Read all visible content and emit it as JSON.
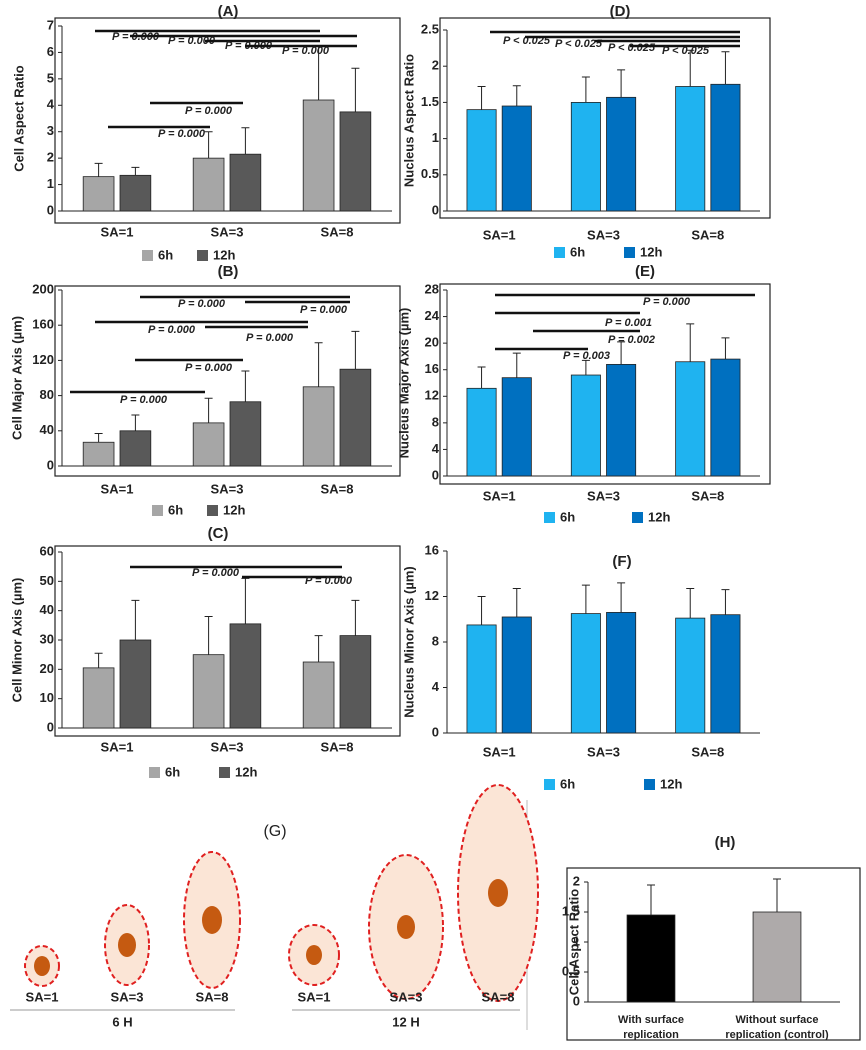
{
  "chart_data": [
    {
      "type": "bar",
      "title": "(A)",
      "y_label": "Cell Aspect Ratio",
      "categories": [
        "SA=1",
        "SA=3",
        "SA=8"
      ],
      "series": [
        {
          "name": "6h",
          "color": "#a6a6a6",
          "values": [
            1.3,
            2.0,
            4.2
          ],
          "errors": [
            0.5,
            1.0,
            2.05
          ]
        },
        {
          "name": "12h",
          "color": "#595959",
          "values": [
            1.35,
            2.15,
            3.75
          ],
          "errors": [
            0.3,
            1.0,
            1.65
          ]
        }
      ],
      "ylim": [
        0,
        7
      ],
      "yticks": [
        0,
        1,
        2,
        3,
        4,
        5,
        6,
        7
      ],
      "annotations": [
        "P = 0.000",
        "P = 0.000",
        "P = 0.000",
        "P = 0.000",
        "P = 0.000",
        "P = 0.000"
      ]
    },
    {
      "type": "bar",
      "title": "(D)",
      "y_label": "Nucleus Aspect Ratio",
      "categories": [
        "SA=1",
        "SA=3",
        "SA=8"
      ],
      "series": [
        {
          "name": "6h",
          "color": "#1fb3f0",
          "values": [
            1.4,
            1.5,
            1.72
          ],
          "errors": [
            0.32,
            0.35,
            0.5
          ]
        },
        {
          "name": "12h",
          "color": "#0070c0",
          "values": [
            1.45,
            1.57,
            1.75
          ],
          "errors": [
            0.28,
            0.38,
            0.45
          ]
        }
      ],
      "ylim": [
        0,
        2.5
      ],
      "yticks": [
        0,
        0.5,
        1,
        1.5,
        2,
        2.5
      ],
      "annotations": [
        "P < 0.025",
        "P < 0.025",
        "P < 0.025",
        "P < 0.025"
      ]
    },
    {
      "type": "bar",
      "title": "(B)",
      "y_label": "Cell Major Axis (µm)",
      "categories": [
        "SA=1",
        "SA=3",
        "SA=8"
      ],
      "series": [
        {
          "name": "6h",
          "color": "#a6a6a6",
          "values": [
            27,
            49,
            90
          ],
          "errors": [
            10,
            28,
            50
          ]
        },
        {
          "name": "12h",
          "color": "#595959",
          "values": [
            40,
            73,
            110
          ],
          "errors": [
            18,
            35,
            43
          ]
        }
      ],
      "ylim": [
        0,
        200
      ],
      "yticks": [
        0,
        40,
        80,
        120,
        160,
        200
      ],
      "annotations": [
        "P = 0.000",
        "P = 0.000",
        "P = 0.000",
        "P = 0.000",
        "P = 0.000",
        "P = 0.000"
      ]
    },
    {
      "type": "bar",
      "title": "(E)",
      "y_label": "Nucleus Major Axis (µm)",
      "categories": [
        "SA=1",
        "SA=3",
        "SA=8"
      ],
      "series": [
        {
          "name": "6h",
          "color": "#1fb3f0",
          "values": [
            13.2,
            15.2,
            17.2
          ],
          "errors": [
            3.2,
            2.2,
            5.7
          ]
        },
        {
          "name": "12h",
          "color": "#0070c0",
          "values": [
            14.8,
            16.8,
            17.6
          ],
          "errors": [
            3.7,
            3.4,
            3.2
          ]
        }
      ],
      "ylim": [
        0,
        28
      ],
      "yticks": [
        0,
        4,
        8,
        12,
        16,
        20,
        24,
        28
      ],
      "annotations": [
        "P = 0.000",
        "P = 0.001",
        "P = 0.002",
        "P = 0.003"
      ]
    },
    {
      "type": "bar",
      "title": "(C)",
      "y_label": "Cell Minor Axis (µm)",
      "categories": [
        "SA=1",
        "SA=3",
        "SA=8"
      ],
      "series": [
        {
          "name": "6h",
          "color": "#a6a6a6",
          "values": [
            20.5,
            25,
            22.5
          ],
          "errors": [
            5,
            13,
            9
          ]
        },
        {
          "name": "12h",
          "color": "#595959",
          "values": [
            30,
            35.5,
            31.5
          ],
          "errors": [
            13.5,
            15.5,
            12
          ]
        }
      ],
      "ylim": [
        0,
        60
      ],
      "yticks": [
        0,
        10,
        20,
        30,
        40,
        50,
        60
      ],
      "annotations": [
        "P = 0.000",
        "P = 0.000"
      ]
    },
    {
      "type": "bar",
      "title": "(F)",
      "y_label": "Nucleus Minor Axis (µm)",
      "categories": [
        "SA=1",
        "SA=3",
        "SA=8"
      ],
      "series": [
        {
          "name": "6h",
          "color": "#1fb3f0",
          "values": [
            9.5,
            10.5,
            10.1
          ],
          "errors": [
            2.5,
            2.5,
            2.6
          ]
        },
        {
          "name": "12h",
          "color": "#0070c0",
          "values": [
            10.2,
            10.6,
            10.4
          ],
          "errors": [
            2.5,
            2.6,
            2.2
          ]
        }
      ],
      "ylim": [
        0,
        16
      ],
      "yticks": [
        0,
        4,
        8,
        12,
        16
      ]
    },
    {
      "type": "bar",
      "title": "(H)",
      "y_label": "Cell Aspect Ratio",
      "categories": [
        "With surface replication",
        "Without surface replication (control)"
      ],
      "values": [
        1.45,
        1.5
      ],
      "errors": [
        0.5,
        0.55
      ],
      "colors": [
        "#000000",
        "#aeaaaa"
      ],
      "ylim": [
        0,
        2
      ],
      "yticks": [
        0,
        0.5,
        1,
        1.5,
        2
      ]
    }
  ],
  "diagram": {
    "title": "(G)",
    "groups": [
      {
        "label": "6 H",
        "cells": [
          "SA=1",
          "SA=3",
          "SA=8"
        ]
      },
      {
        "label": "12 H",
        "cells": [
          "SA=1",
          "SA=3",
          "SA=8"
        ]
      }
    ]
  }
}
